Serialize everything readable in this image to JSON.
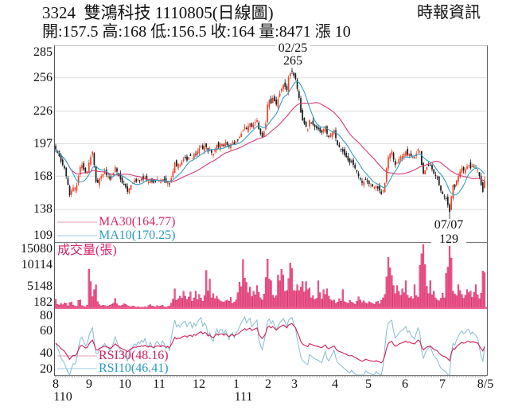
{
  "header": {
    "title": "3324  雙鴻科技 1110805(日線圖)",
    "stats": "開:157.5 高:168 低:156.5 收:164 量:8471 漲 10",
    "source": "時報資訊"
  },
  "price_panel": {
    "y_ticks": [
      "285",
      "256",
      "226",
      "197",
      "168",
      "138",
      "109"
    ],
    "legend": {
      "ma30": "MA30(164.77)",
      "ma10": "MA10(170.25)"
    },
    "annotations": {
      "high_date": "02/25",
      "high_value": "265",
      "low_date": "07/07",
      "low_value": "129"
    }
  },
  "volume_panel": {
    "title": "成交量(張)",
    "y_ticks": [
      "15080",
      "10114",
      "5148",
      "182"
    ]
  },
  "rsi_panel": {
    "y_ticks": [
      "80",
      "60",
      "40",
      "20"
    ],
    "legend": {
      "rsi30": "RSI30(48.16)",
      "rsi10": "RSI10(46.41)"
    }
  },
  "x_axis": {
    "months": [
      "8",
      "9",
      "10",
      "11",
      "12",
      "1",
      "2",
      "3",
      "4",
      "5",
      "6",
      "7",
      "8/5"
    ],
    "years": [
      "110",
      "111"
    ]
  },
  "colors": {
    "up": "#e8452c",
    "down": "#1a1a1a",
    "ma30": "#d63a74",
    "ma10": "#3a9cc0",
    "ma30_legend_line": "#ecb0c6",
    "ma10_legend_line": "#b0d8e6",
    "ma30_text": "#d42a6c",
    "ma10_text": "#2a9bc0",
    "volume": "#ec5f90",
    "volume_edge": "#d11a5e",
    "rsi30": "#d01e5c",
    "rsi10": "#86bcd0",
    "rsi30_text": "#d01e5c",
    "rsi10_text": "#2a9bc0",
    "grid": "#dedede",
    "axis": "#555555"
  },
  "chart_data": [
    {
      "panel": "price",
      "type": "line",
      "subtype": "candlestick",
      "title": "3324 雙鴻科技 1110805(日線圖)",
      "xlabel": "",
      "ylabel": "",
      "ylim": [
        109,
        285
      ],
      "y_ticks": [
        285,
        256,
        226,
        197,
        168,
        138,
        109
      ],
      "gridlines": [
        256,
        226,
        197,
        168,
        138
      ],
      "x_ticks": [
        {
          "label": "8",
          "index": 0
        },
        {
          "label": "9",
          "index": 19
        },
        {
          "label": "10",
          "index": 40
        },
        {
          "label": "11",
          "index": 60
        },
        {
          "label": "12",
          "index": 81
        },
        {
          "label": "1",
          "index": 104
        },
        {
          "label": "2",
          "index": 121
        },
        {
          "label": "3",
          "index": 136
        },
        {
          "label": "4",
          "index": 160
        },
        {
          "label": "5",
          "index": 178
        },
        {
          "label": "6",
          "index": 199
        },
        {
          "label": "7",
          "index": 220
        },
        {
          "label": "8/5",
          "index": 245
        }
      ],
      "year_ticks": [
        {
          "label": "110",
          "index": 0
        },
        {
          "label": "111",
          "index": 104
        }
      ],
      "close": [
        192,
        189,
        186,
        181,
        178,
        175,
        168,
        160,
        151,
        155,
        158,
        157,
        160,
        168,
        176,
        178,
        174,
        171,
        172,
        180,
        185,
        190,
        178,
        163,
        162,
        166,
        168,
        170,
        172,
        169,
        168,
        165,
        167,
        171,
        176,
        172,
        168,
        165,
        162,
        160,
        158,
        154,
        157,
        160,
        162,
        164,
        163,
        165,
        164,
        166,
        165,
        167,
        164,
        163,
        165,
        163,
        162,
        164,
        165,
        164,
        163,
        165,
        164,
        162,
        163,
        161,
        166,
        172,
        180,
        177,
        179,
        178,
        181,
        183,
        184,
        182,
        185,
        186,
        184,
        188,
        187,
        190,
        193,
        195,
        192,
        195,
        194,
        190,
        192,
        189,
        188,
        192,
        196,
        194,
        197,
        197,
        195,
        198,
        196,
        194,
        197,
        198,
        196,
        199,
        200,
        203,
        206,
        209,
        212,
        210,
        213,
        215,
        212,
        214,
        216,
        218,
        210,
        206,
        203,
        208,
        215,
        232,
        236,
        233,
        238,
        235,
        232,
        237,
        242,
        246,
        250,
        248,
        245,
        256,
        260,
        262,
        258,
        255,
        246,
        238,
        225,
        218,
        215,
        212,
        210,
        218,
        216,
        214,
        212,
        211,
        210,
        208,
        207,
        210,
        213,
        206,
        203,
        205,
        207,
        209,
        202,
        196,
        194,
        192,
        190,
        187,
        185,
        182,
        180,
        181,
        178,
        175,
        172,
        168,
        165,
        162,
        163,
        165,
        163,
        161,
        160,
        159,
        158,
        159,
        157,
        155,
        152,
        155,
        162,
        175,
        185,
        188,
        190,
        183,
        178,
        180,
        183,
        185,
        186,
        188,
        190,
        187,
        188,
        186,
        185,
        184,
        188,
        192,
        190,
        178,
        170,
        173,
        176,
        177,
        178,
        174,
        170,
        168,
        166,
        160,
        155,
        152,
        150,
        148,
        142,
        136,
        150,
        160,
        158,
        164,
        168,
        172,
        175,
        173,
        174,
        177,
        178,
        175,
        177,
        176,
        175,
        174,
        168,
        160,
        154,
        164
      ],
      "last_bar": {
        "open": 157.5,
        "high": 168,
        "low": 156.5,
        "close": 164,
        "volume": 8471,
        "change": 10
      },
      "extremes": [
        {
          "type": "high",
          "index": 135,
          "date": "02/25",
          "value": 265
        },
        {
          "type": "low",
          "index": 225,
          "date": "07/07",
          "value": 129
        }
      ],
      "series": [
        {
          "name": "MA30",
          "period": 30,
          "last": 164.77
        },
        {
          "name": "MA10",
          "period": 10,
          "last": 170.25
        }
      ],
      "legend_position": "bottom-left"
    },
    {
      "panel": "volume",
      "type": "bar",
      "ylabel": "成交量(張)",
      "ylim": [
        182,
        15080
      ],
      "y_ticks": [
        15080,
        10114,
        5148,
        182
      ],
      "values": [
        2260,
        1100,
        900,
        1300,
        1000,
        1400,
        1300,
        700,
        1500,
        1600,
        900,
        700,
        600,
        2000,
        2100,
        800,
        600,
        500,
        900,
        9300,
        6400,
        2880,
        4520,
        5650,
        1700,
        1000,
        700,
        900,
        800,
        600,
        700,
        900,
        1100,
        1400,
        2450,
        1200,
        800,
        700,
        900,
        1200,
        1100,
        800,
        600,
        500,
        700,
        600,
        400,
        500,
        400,
        300,
        400,
        500,
        400,
        800,
        1000,
        700,
        600,
        500,
        800,
        600,
        700,
        900,
        500,
        400,
        600,
        700,
        1400,
        2300,
        4700,
        2000,
        2400,
        3000,
        2500,
        4150,
        3000,
        2200,
        2800,
        4000,
        1800,
        2600,
        4150,
        2200,
        3400,
        2500,
        1800,
        3100,
        9000,
        4200,
        6980,
        2600,
        3580,
        2400,
        3000,
        2300,
        1900,
        1700,
        1600,
        1900,
        2100,
        1800,
        2700,
        1300,
        1600,
        2100,
        3800,
        6300,
        5200,
        11550,
        7200,
        6220,
        3800,
        5100,
        2900,
        4150,
        3300,
        5470,
        3900,
        2600,
        2100,
        3500,
        7350,
        11690,
        7000,
        6600,
        3200,
        2600,
        3100,
        7920,
        6600,
        9240,
        7920,
        4100,
        4300,
        7100,
        10740,
        9430,
        4300,
        4200,
        5660,
        4300,
        5100,
        6410,
        4000,
        6410,
        4500,
        4900,
        2600,
        3100,
        2200,
        2500,
        6600,
        3800,
        2300,
        4520,
        3400,
        4710,
        3000,
        2200,
        1890,
        2100,
        1300,
        1600,
        2400,
        1800,
        4520,
        1700,
        1500,
        1300,
        2000,
        1600,
        1400,
        1100,
        1800,
        2830,
        2100,
        1500,
        1890,
        1400,
        1200,
        1700,
        1500,
        1300,
        1100,
        1600,
        1800,
        1200,
        2000,
        2600,
        3400,
        7500,
        12070,
        9620,
        7800,
        5470,
        3600,
        5470,
        4100,
        3200,
        4710,
        3800,
        6600,
        3200,
        2600,
        2900,
        2400,
        5660,
        3100,
        2700,
        10180,
        12900,
        15080,
        10370,
        5300,
        3600,
        6600,
        3300,
        4150,
        2600,
        2100,
        1900,
        2500,
        3700,
        2600,
        8300,
        9800,
        14900,
        11900,
        4150,
        3500,
        3100,
        5660,
        4300,
        3400,
        2500,
        3200,
        4500,
        3800,
        4200,
        2700,
        3900,
        5660,
        3300,
        2400,
        3700,
        8860,
        8471
      ]
    },
    {
      "panel": "rsi",
      "type": "line",
      "ylim": [
        15,
        87
      ],
      "y_ticks": [
        80,
        60,
        40,
        20
      ],
      "series": [
        {
          "name": "RSI30",
          "period": 30,
          "last": 48.16
        },
        {
          "name": "RSI10",
          "period": 10,
          "last": 46.41
        }
      ],
      "legend_position": "bottom-left"
    }
  ]
}
